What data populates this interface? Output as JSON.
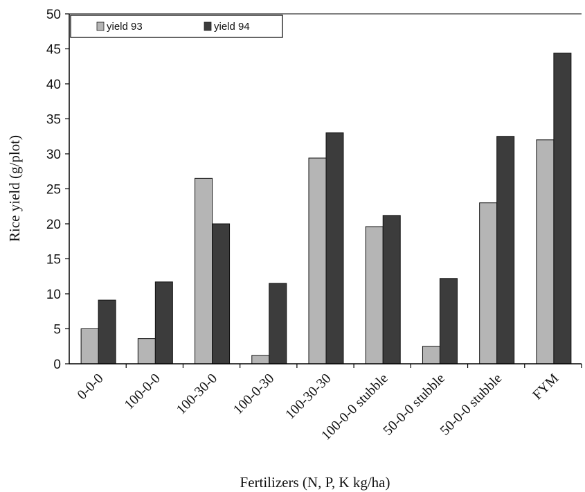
{
  "chart_data": {
    "type": "bar",
    "title": "",
    "xlabel": "Fertilizers (N, P, K kg/ha)",
    "ylabel": "Rice yield (g/plot)",
    "ylim": [
      0,
      50
    ],
    "yticks": [
      0,
      5,
      10,
      15,
      20,
      25,
      30,
      35,
      40,
      45,
      50
    ],
    "grid": false,
    "legend_position": "top-left",
    "categories": [
      "0-0-0",
      "100-0-0",
      "100-30-0",
      "100-0-30",
      "100-30-30",
      "100-0-0 stubble",
      "50-0-0 stubble",
      "50-0-0 stubble",
      "FYM"
    ],
    "series": [
      {
        "name": "yield 93",
        "color": "#b5b5b5",
        "values": [
          5.0,
          3.6,
          26.5,
          1.2,
          29.4,
          19.6,
          2.5,
          23.0,
          32.0
        ]
      },
      {
        "name": "yield 94",
        "color": "#3c3c3c",
        "values": [
          9.1,
          11.7,
          20.0,
          11.5,
          33.0,
          21.2,
          12.2,
          32.5,
          44.4
        ]
      }
    ]
  }
}
